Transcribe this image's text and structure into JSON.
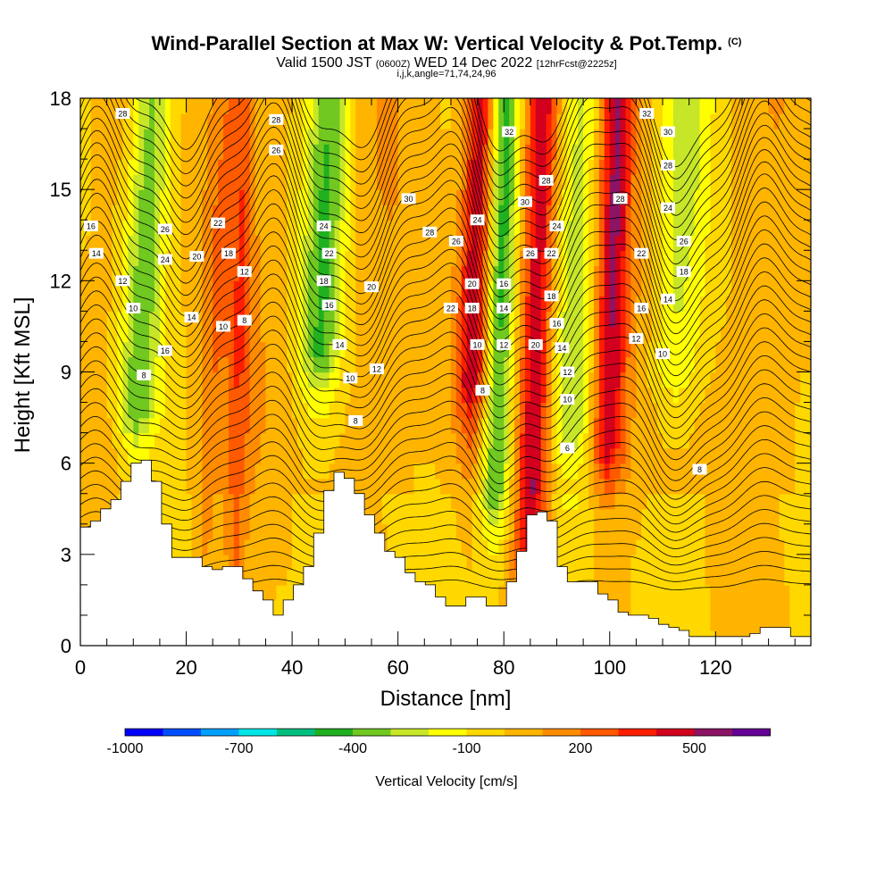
{
  "header": {
    "title": "Wind-Parallel Section at Max W: Vertical Velocity & Pot.Temp.",
    "title_unit": "(C)",
    "valid_prefix": "Valid 1500 JST",
    "valid_utc": "(0600Z)",
    "valid_date": "WED 14 Dec 2022",
    "forecast": "[12hrFcst@2225z]",
    "indices": "i,j,k,angle=71,74,24,96"
  },
  "chart_data": {
    "type": "heatmap",
    "xlabel": "Distance [nm]",
    "ylabel": "Height [Kft MSL]",
    "xlim": [
      0,
      138
    ],
    "ylim": [
      0,
      18
    ],
    "x_ticks": [
      0,
      20,
      40,
      60,
      80,
      100,
      120
    ],
    "y_ticks": [
      0,
      3,
      6,
      9,
      12,
      15,
      18
    ],
    "grid": false,
    "colorbar": {
      "label": "Vertical Velocity [cm/s]",
      "tick_labels": [
        "-1000",
        "-700",
        "-400",
        "-100",
        "200",
        "500"
      ],
      "colors": [
        "#0000ff",
        "#0050ff",
        "#00a0ff",
        "#00e6e6",
        "#00c080",
        "#20b020",
        "#70c820",
        "#c8e628",
        "#ffff00",
        "#ffd800",
        "#ffb400",
        "#ff8c00",
        "#ff5a00",
        "#ff1e00",
        "#d2001e",
        "#8c1464",
        "#640096"
      ]
    },
    "terrain_height_kft": [
      3.9,
      4.1,
      4.5,
      4.8,
      5.4,
      6.0,
      6.1,
      5.4,
      4.0,
      2.9,
      2.9,
      2.9,
      2.6,
      2.5,
      2.6,
      2.6,
      2.2,
      1.8,
      1.5,
      1.0,
      1.5,
      2.0,
      2.6,
      3.7,
      5.1,
      5.7,
      5.5,
      5.0,
      4.3,
      3.7,
      3.1,
      2.9,
      2.4,
      2.1,
      2.0,
      1.6,
      1.3,
      1.3,
      1.6,
      1.6,
      1.3,
      1.3,
      2.1,
      3.1,
      4.3,
      4.4,
      4.1,
      2.6,
      2.1,
      2.1,
      2.1,
      1.7,
      1.5,
      1.1,
      1.0,
      1.0,
      0.9,
      0.7,
      0.6,
      0.5,
      0.3,
      0.3,
      0.3,
      0.3,
      0.3,
      0.3,
      0.4,
      0.6,
      0.6,
      0.6,
      0.3,
      0.3
    ],
    "velocity_bands": [
      {
        "x": 11,
        "w": 4,
        "lean": 0.3,
        "min_height": 7.5,
        "value": -400
      },
      {
        "x": 25,
        "w": 3,
        "lean": 0.25,
        "min_height": 3,
        "value": 150
      },
      {
        "x": 30,
        "w": 2,
        "lean": 0.1,
        "min_height": 1,
        "value": 200
      },
      {
        "x": 45,
        "w": 4,
        "lean": 0.25,
        "min_height": 9.5,
        "value": -400
      },
      {
        "x": 74,
        "w": 3,
        "lean": 0.2,
        "min_height": 8.5,
        "value": 450
      },
      {
        "x": 79,
        "w": 3,
        "lean": 0.15,
        "min_height": 5,
        "value": -500
      },
      {
        "x": 86,
        "w": 3,
        "lean": 0.15,
        "min_height": 3,
        "value": 450
      },
      {
        "x": 93,
        "w": 4,
        "lean": 0.2,
        "min_height": 7,
        "value": -250
      },
      {
        "x": 100,
        "w": 3,
        "lean": 0.15,
        "min_height": 6.5,
        "value": 450
      },
      {
        "x": 112,
        "w": 5,
        "lean": 0.25,
        "min_height": 9,
        "value": -250
      }
    ],
    "potential_temperature_labels": [
      {
        "x": 8,
        "y": 17.5,
        "text": "28"
      },
      {
        "x": 37,
        "y": 17.3,
        "text": "28"
      },
      {
        "x": 37,
        "y": 16.3,
        "text": "26"
      },
      {
        "x": 2,
        "y": 13.8,
        "text": "16"
      },
      {
        "x": 16,
        "y": 13.7,
        "text": "26"
      },
      {
        "x": 26,
        "y": 13.9,
        "text": "22"
      },
      {
        "x": 3,
        "y": 12.9,
        "text": "14"
      },
      {
        "x": 16,
        "y": 12.7,
        "text": "24"
      },
      {
        "x": 22,
        "y": 12.8,
        "text": "20"
      },
      {
        "x": 28,
        "y": 12.9,
        "text": "18"
      },
      {
        "x": 31,
        "y": 12.3,
        "text": "12"
      },
      {
        "x": 8,
        "y": 12,
        "text": "12"
      },
      {
        "x": 10,
        "y": 11.1,
        "text": "10"
      },
      {
        "x": 21,
        "y": 10.8,
        "text": "14"
      },
      {
        "x": 27,
        "y": 10.5,
        "text": "10"
      },
      {
        "x": 31,
        "y": 10.7,
        "text": "8"
      },
      {
        "x": 16,
        "y": 9.7,
        "text": "16"
      },
      {
        "x": 12,
        "y": 8.9,
        "text": "8"
      },
      {
        "x": 46,
        "y": 13.8,
        "text": "24"
      },
      {
        "x": 47,
        "y": 12.9,
        "text": "22"
      },
      {
        "x": 46,
        "y": 12,
        "text": "18"
      },
      {
        "x": 47,
        "y": 11.2,
        "text": "16"
      },
      {
        "x": 55,
        "y": 11.8,
        "text": "20"
      },
      {
        "x": 49,
        "y": 9.9,
        "text": "14"
      },
      {
        "x": 56,
        "y": 9.1,
        "text": "12"
      },
      {
        "x": 51,
        "y": 8.8,
        "text": "10"
      },
      {
        "x": 52,
        "y": 7.4,
        "text": "8"
      },
      {
        "x": 62,
        "y": 14.7,
        "text": "30"
      },
      {
        "x": 66,
        "y": 13.6,
        "text": "28"
      },
      {
        "x": 71,
        "y": 13.3,
        "text": "26"
      },
      {
        "x": 75,
        "y": 14,
        "text": "24"
      },
      {
        "x": 74,
        "y": 11.9,
        "text": "20"
      },
      {
        "x": 70,
        "y": 11.1,
        "text": "22"
      },
      {
        "x": 74,
        "y": 11.1,
        "text": "18"
      },
      {
        "x": 75,
        "y": 9.9,
        "text": "10"
      },
      {
        "x": 76,
        "y": 8.4,
        "text": "8"
      },
      {
        "x": 80,
        "y": 11.9,
        "text": "16"
      },
      {
        "x": 80,
        "y": 11.1,
        "text": "14"
      },
      {
        "x": 80,
        "y": 9.9,
        "text": "12"
      },
      {
        "x": 81,
        "y": 16.9,
        "text": "32"
      },
      {
        "x": 84,
        "y": 14.6,
        "text": "30"
      },
      {
        "x": 88,
        "y": 15.3,
        "text": "28"
      },
      {
        "x": 85,
        "y": 12.9,
        "text": "26"
      },
      {
        "x": 89,
        "y": 12.9,
        "text": "22"
      },
      {
        "x": 90,
        "y": 13.8,
        "text": "24"
      },
      {
        "x": 89,
        "y": 11.5,
        "text": "18"
      },
      {
        "x": 90,
        "y": 10.6,
        "text": "16"
      },
      {
        "x": 86,
        "y": 9.9,
        "text": "20"
      },
      {
        "x": 91,
        "y": 9.8,
        "text": "14"
      },
      {
        "x": 92,
        "y": 9,
        "text": "12"
      },
      {
        "x": 92,
        "y": 8.1,
        "text": "10"
      },
      {
        "x": 92,
        "y": 6.5,
        "text": "6"
      },
      {
        "x": 102,
        "y": 14.7,
        "text": "28"
      },
      {
        "x": 107,
        "y": 17.5,
        "text": "32"
      },
      {
        "x": 111,
        "y": 16.9,
        "text": "30"
      },
      {
        "x": 111,
        "y": 15.8,
        "text": "28"
      },
      {
        "x": 111,
        "y": 14.4,
        "text": "24"
      },
      {
        "x": 114,
        "y": 13.3,
        "text": "26"
      },
      {
        "x": 106,
        "y": 12.9,
        "text": "22"
      },
      {
        "x": 114,
        "y": 12.3,
        "text": "18"
      },
      {
        "x": 106,
        "y": 11.1,
        "text": "16"
      },
      {
        "x": 111,
        "y": 11.4,
        "text": "14"
      },
      {
        "x": 105,
        "y": 10.1,
        "text": "12"
      },
      {
        "x": 110,
        "y": 9.6,
        "text": "10"
      },
      {
        "x": 117,
        "y": 5.8,
        "text": "8"
      }
    ]
  }
}
